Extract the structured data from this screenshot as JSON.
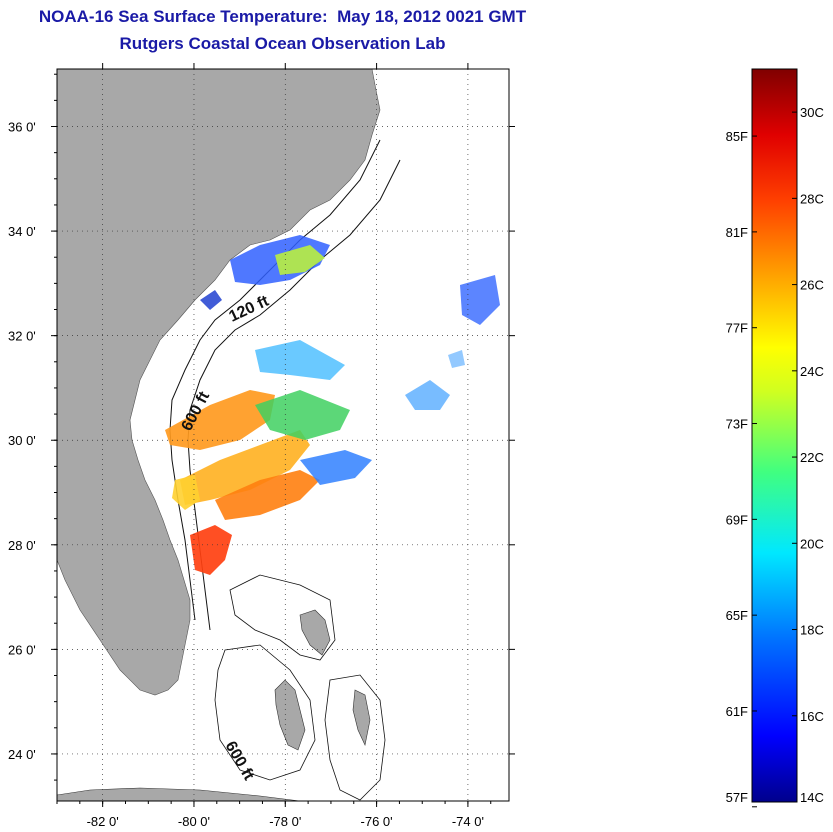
{
  "title": "NOAA-16 Sea Surface Temperature:  May 18, 2012 0021 GMT",
  "subtitle": "Rutgers Coastal Ocean Observation Lab",
  "map": {
    "lon_ticks": [
      {
        "value": -82,
        "label": "-82 0'"
      },
      {
        "value": -80,
        "label": "-80 0'"
      },
      {
        "value": -78,
        "label": "-78 0'"
      },
      {
        "value": -76,
        "label": "-76 0'"
      },
      {
        "value": -74,
        "label": "-74 0'"
      }
    ],
    "lat_ticks": [
      {
        "value": 36,
        "label": "36 0'"
      },
      {
        "value": 34,
        "label": "34 0'"
      },
      {
        "value": 32,
        "label": "32 0'"
      },
      {
        "value": 30,
        "label": "30 0'"
      },
      {
        "value": 28,
        "label": "28 0'"
      },
      {
        "value": 26,
        "label": "26 0'"
      },
      {
        "value": 24,
        "label": "24 0'"
      }
    ],
    "lon_range": [
      -83.0,
      -73.1
    ],
    "lat_range": [
      23.1,
      37.1
    ],
    "grid": true,
    "land_color": "#a8a8a8",
    "isobath_labels": [
      "120 ft",
      "600 ft",
      "600 ft"
    ]
  },
  "colorbar": {
    "range_c": [
      14,
      31
    ],
    "fahrenheit_labels": [
      "85F",
      "81F",
      "77F",
      "73F",
      "69F",
      "65F",
      "61F",
      "57F"
    ],
    "celsius_labels": [
      "30C",
      "28C",
      "26C",
      "24C",
      "22C",
      "20C",
      "18C",
      "16C",
      "14C"
    ]
  }
}
